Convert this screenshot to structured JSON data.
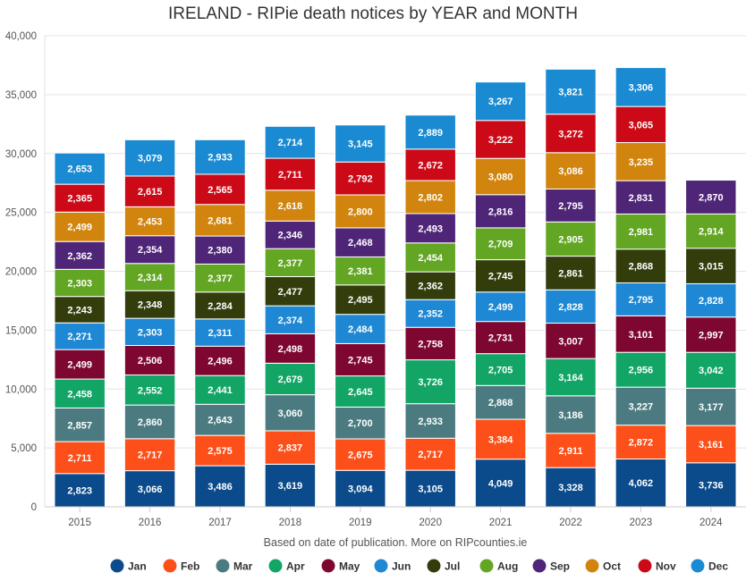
{
  "chart_data": {
    "type": "bar",
    "stacked": true,
    "title": "IRELAND - RIPie death notices by YEAR and MONTH",
    "xlabel": "Based on date of publication. More on RIPcounties.ie",
    "ylabel": "",
    "ylim": [
      0,
      40000
    ],
    "yticks": [
      0,
      5000,
      10000,
      15000,
      20000,
      25000,
      30000,
      35000,
      40000
    ],
    "ytick_labels": [
      "0",
      "5,000",
      "10,000",
      "15,000",
      "20,000",
      "25,000",
      "30,000",
      "35,000",
      "40,000"
    ],
    "categories": [
      "2015",
      "2016",
      "2017",
      "2018",
      "2019",
      "2020",
      "2021",
      "2022",
      "2023",
      "2024"
    ],
    "legend_position": "bottom",
    "grid": true,
    "series": [
      {
        "name": "Jan",
        "color": "#0b4a8b",
        "values": [
          2823,
          3066,
          3486,
          3619,
          3094,
          3105,
          4049,
          3328,
          4062,
          3736
        ],
        "labels": [
          "2,823",
          "3,066",
          "3,486",
          "3,619",
          "3,094",
          "3,105",
          "4,049",
          "3,328",
          "4,062",
          "3,736"
        ]
      },
      {
        "name": "Feb",
        "color": "#fc4f19",
        "values": [
          2711,
          2717,
          2575,
          2837,
          2675,
          2717,
          3384,
          2911,
          2872,
          3161
        ],
        "labels": [
          "2,711",
          "2,717",
          "2,575",
          "2,837",
          "2,675",
          "2,717",
          "3,384",
          "2,911",
          "2,872",
          "3,161"
        ]
      },
      {
        "name": "Mar",
        "color": "#4b7b80",
        "values": [
          2857,
          2860,
          2643,
          3060,
          2700,
          2933,
          2868,
          3186,
          3227,
          3177
        ],
        "labels": [
          "2,857",
          "2,860",
          "2,643",
          "3,060",
          "2,700",
          "2,933",
          "2,868",
          "3,186",
          "3,227",
          "3,177"
        ]
      },
      {
        "name": "Apr",
        "color": "#12a566",
        "values": [
          2458,
          2552,
          2441,
          2679,
          2645,
          3726,
          2705,
          3164,
          2956,
          3042
        ],
        "labels": [
          "2,458",
          "2,552",
          "2,441",
          "2,679",
          "2,645",
          "3,726",
          "2,705",
          "3,164",
          "2,956",
          "3,042"
        ]
      },
      {
        "name": "May",
        "color": "#7d0730",
        "values": [
          2499,
          2506,
          2496,
          2498,
          2745,
          2758,
          2731,
          3007,
          3101,
          2997
        ],
        "labels": [
          "2,499",
          "2,506",
          "2,496",
          "2,498",
          "2,745",
          "2,758",
          "2,731",
          "3,007",
          "3,101",
          "2,997"
        ]
      },
      {
        "name": "Jun",
        "color": "#1e88d4",
        "values": [
          2271,
          2303,
          2311,
          2374,
          2484,
          2352,
          2499,
          2828,
          2795,
          2828
        ],
        "labels": [
          "2,271",
          "2,303",
          "2,311",
          "2,374",
          "2,484",
          "2,352",
          "2,499",
          "2,828",
          "2,795",
          "2,828"
        ]
      },
      {
        "name": "Jul",
        "color": "#333d0c",
        "values": [
          2243,
          2348,
          2284,
          2477,
          2495,
          2362,
          2745,
          2861,
          2868,
          3015
        ],
        "labels": [
          "2,243",
          "2,348",
          "2,284",
          "2,477",
          "2,495",
          "2,362",
          "2,745",
          "2,861",
          "2,868",
          "3,015"
        ]
      },
      {
        "name": "Aug",
        "color": "#62a623",
        "values": [
          2303,
          2314,
          2377,
          2377,
          2381,
          2454,
          2709,
          2905,
          2981,
          2914
        ],
        "labels": [
          "2,303",
          "2,314",
          "2,377",
          "2,377",
          "2,381",
          "2,454",
          "2,709",
          "2,905",
          "2,981",
          "2,914"
        ]
      },
      {
        "name": "Sep",
        "color": "#4f2578",
        "values": [
          2362,
          2354,
          2380,
          2346,
          2468,
          2493,
          2816,
          2795,
          2831,
          2870
        ],
        "labels": [
          "2,362",
          "2,354",
          "2,380",
          "2,346",
          "2,468",
          "2,493",
          "2,816",
          "2,795",
          "2,831",
          "2,870"
        ]
      },
      {
        "name": "Oct",
        "color": "#d1850f",
        "values": [
          2499,
          2453,
          2681,
          2618,
          2800,
          2802,
          3080,
          3086,
          3235,
          null
        ],
        "labels": [
          "2,499",
          "2,453",
          "2,681",
          "2,618",
          "2,800",
          "2,802",
          "3,080",
          "3,086",
          "3,235",
          ""
        ]
      },
      {
        "name": "Nov",
        "color": "#cc0a17",
        "values": [
          2365,
          2615,
          2565,
          2711,
          2792,
          2672,
          3222,
          3272,
          3065,
          null
        ],
        "labels": [
          "2,365",
          "2,615",
          "2,565",
          "2,711",
          "2,792",
          "2,672",
          "3,222",
          "3,272",
          "3,065",
          ""
        ]
      },
      {
        "name": "Dec",
        "color": "#1a8ad2",
        "values": [
          2653,
          3079,
          2933,
          2714,
          3145,
          2889,
          3267,
          3821,
          3306,
          null
        ],
        "labels": [
          "2,653",
          "3,079",
          "2,933",
          "2,714",
          "3,145",
          "2,889",
          "3,267",
          "3,821",
          "3,306",
          ""
        ]
      }
    ]
  }
}
